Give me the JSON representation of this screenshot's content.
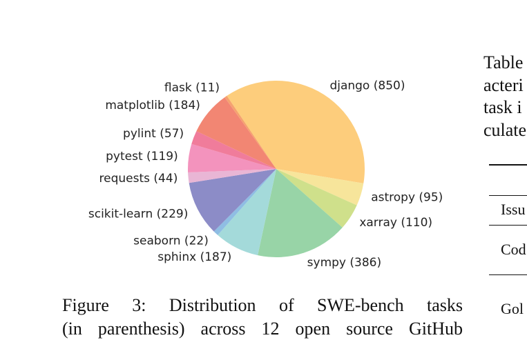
{
  "chart_data": {
    "type": "pie",
    "categories": [
      "django (850)",
      "astropy (95)",
      "xarray (110)",
      "sympy (386)",
      "sphinx (187)",
      "seaborn (22)",
      "scikit-learn (229)",
      "requests (44)",
      "pytest (119)",
      "pylint (57)",
      "matplotlib (184)",
      "flask (11)"
    ],
    "values": [
      850,
      95,
      110,
      386,
      187,
      22,
      229,
      44,
      119,
      57,
      184,
      11
    ],
    "colors": [
      "#fdcd7c",
      "#f7e59b",
      "#cfe08b",
      "#98d4a7",
      "#a4dada",
      "#8fbde3",
      "#8c8cc7",
      "#e9b6d5",
      "#f393bd",
      "#f07c9b",
      "#f28673",
      "#f5a26f"
    ]
  },
  "caption": [
    "Figure 3:  Distribution of SWE-bench tasks",
    "(in parenthesis) across 12 open source GitHub"
  ],
  "side_text": [
    "Table",
    "acteri",
    "task i",
    "culate"
  ],
  "table": {
    "rows": [
      [
        "Issu"
      ],
      [
        "Cod"
      ],
      [
        "Gol"
      ]
    ]
  }
}
